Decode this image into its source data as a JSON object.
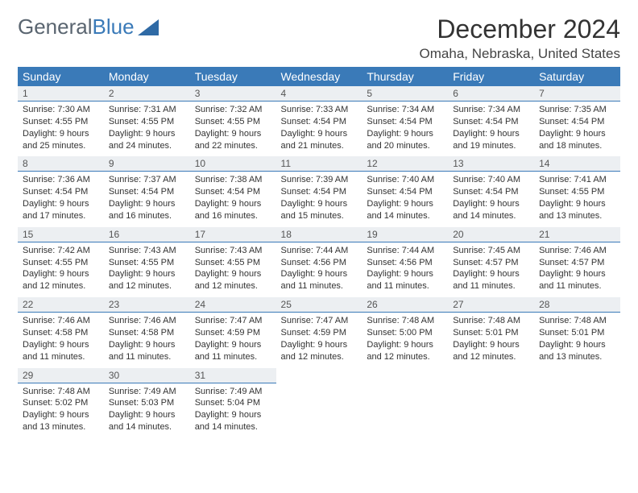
{
  "logo": {
    "text_a": "General",
    "text_b": "Blue",
    "triangle_color": "#2f6aa5"
  },
  "title": "December 2024",
  "location": "Omaha, Nebraska, United States",
  "header_bg": "#3a7ab8",
  "daynum_bg": "#eceff2",
  "daynum_border": "#3a7ab8",
  "weekdays": [
    "Sunday",
    "Monday",
    "Tuesday",
    "Wednesday",
    "Thursday",
    "Friday",
    "Saturday"
  ],
  "weeks": [
    [
      {
        "n": "1",
        "sr": "7:30 AM",
        "ss": "4:55 PM",
        "dl": "9 hours and 25 minutes."
      },
      {
        "n": "2",
        "sr": "7:31 AM",
        "ss": "4:55 PM",
        "dl": "9 hours and 24 minutes."
      },
      {
        "n": "3",
        "sr": "7:32 AM",
        "ss": "4:55 PM",
        "dl": "9 hours and 22 minutes."
      },
      {
        "n": "4",
        "sr": "7:33 AM",
        "ss": "4:54 PM",
        "dl": "9 hours and 21 minutes."
      },
      {
        "n": "5",
        "sr": "7:34 AM",
        "ss": "4:54 PM",
        "dl": "9 hours and 20 minutes."
      },
      {
        "n": "6",
        "sr": "7:34 AM",
        "ss": "4:54 PM",
        "dl": "9 hours and 19 minutes."
      },
      {
        "n": "7",
        "sr": "7:35 AM",
        "ss": "4:54 PM",
        "dl": "9 hours and 18 minutes."
      }
    ],
    [
      {
        "n": "8",
        "sr": "7:36 AM",
        "ss": "4:54 PM",
        "dl": "9 hours and 17 minutes."
      },
      {
        "n": "9",
        "sr": "7:37 AM",
        "ss": "4:54 PM",
        "dl": "9 hours and 16 minutes."
      },
      {
        "n": "10",
        "sr": "7:38 AM",
        "ss": "4:54 PM",
        "dl": "9 hours and 16 minutes."
      },
      {
        "n": "11",
        "sr": "7:39 AM",
        "ss": "4:54 PM",
        "dl": "9 hours and 15 minutes."
      },
      {
        "n": "12",
        "sr": "7:40 AM",
        "ss": "4:54 PM",
        "dl": "9 hours and 14 minutes."
      },
      {
        "n": "13",
        "sr": "7:40 AM",
        "ss": "4:54 PM",
        "dl": "9 hours and 14 minutes."
      },
      {
        "n": "14",
        "sr": "7:41 AM",
        "ss": "4:55 PM",
        "dl": "9 hours and 13 minutes."
      }
    ],
    [
      {
        "n": "15",
        "sr": "7:42 AM",
        "ss": "4:55 PM",
        "dl": "9 hours and 12 minutes."
      },
      {
        "n": "16",
        "sr": "7:43 AM",
        "ss": "4:55 PM",
        "dl": "9 hours and 12 minutes."
      },
      {
        "n": "17",
        "sr": "7:43 AM",
        "ss": "4:55 PM",
        "dl": "9 hours and 12 minutes."
      },
      {
        "n": "18",
        "sr": "7:44 AM",
        "ss": "4:56 PM",
        "dl": "9 hours and 11 minutes."
      },
      {
        "n": "19",
        "sr": "7:44 AM",
        "ss": "4:56 PM",
        "dl": "9 hours and 11 minutes."
      },
      {
        "n": "20",
        "sr": "7:45 AM",
        "ss": "4:57 PM",
        "dl": "9 hours and 11 minutes."
      },
      {
        "n": "21",
        "sr": "7:46 AM",
        "ss": "4:57 PM",
        "dl": "9 hours and 11 minutes."
      }
    ],
    [
      {
        "n": "22",
        "sr": "7:46 AM",
        "ss": "4:58 PM",
        "dl": "9 hours and 11 minutes."
      },
      {
        "n": "23",
        "sr": "7:46 AM",
        "ss": "4:58 PM",
        "dl": "9 hours and 11 minutes."
      },
      {
        "n": "24",
        "sr": "7:47 AM",
        "ss": "4:59 PM",
        "dl": "9 hours and 11 minutes."
      },
      {
        "n": "25",
        "sr": "7:47 AM",
        "ss": "4:59 PM",
        "dl": "9 hours and 12 minutes."
      },
      {
        "n": "26",
        "sr": "7:48 AM",
        "ss": "5:00 PM",
        "dl": "9 hours and 12 minutes."
      },
      {
        "n": "27",
        "sr": "7:48 AM",
        "ss": "5:01 PM",
        "dl": "9 hours and 12 minutes."
      },
      {
        "n": "28",
        "sr": "7:48 AM",
        "ss": "5:01 PM",
        "dl": "9 hours and 13 minutes."
      }
    ],
    [
      {
        "n": "29",
        "sr": "7:48 AM",
        "ss": "5:02 PM",
        "dl": "9 hours and 13 minutes."
      },
      {
        "n": "30",
        "sr": "7:49 AM",
        "ss": "5:03 PM",
        "dl": "9 hours and 14 minutes."
      },
      {
        "n": "31",
        "sr": "7:49 AM",
        "ss": "5:04 PM",
        "dl": "9 hours and 14 minutes."
      },
      null,
      null,
      null,
      null
    ]
  ],
  "labels": {
    "sunrise": "Sunrise:",
    "sunset": "Sunset:",
    "daylight": "Daylight:"
  }
}
